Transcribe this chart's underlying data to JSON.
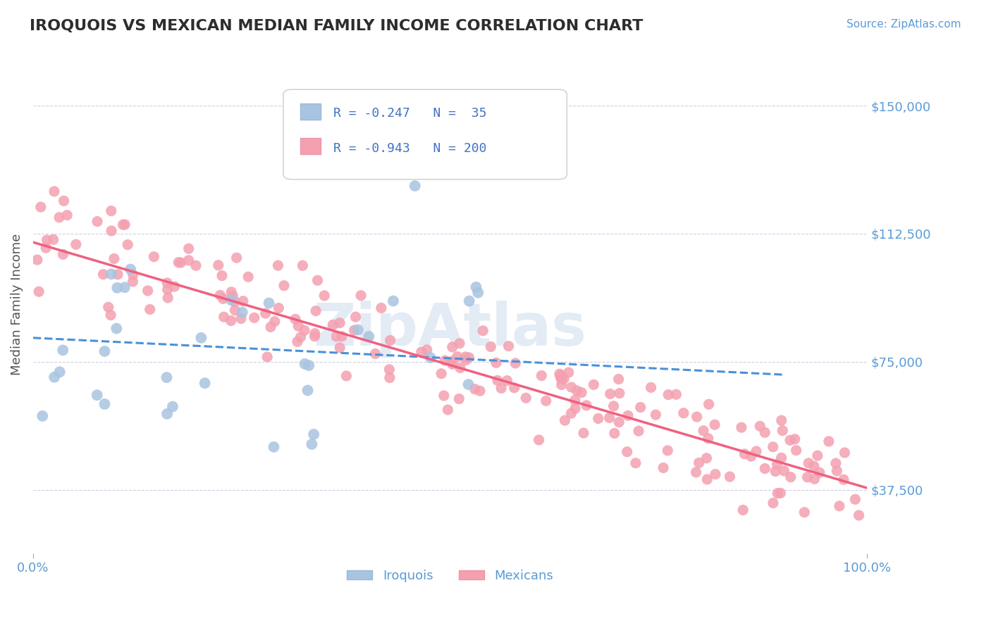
{
  "title": "IROQUOIS VS MEXICAN MEDIAN FAMILY INCOME CORRELATION CHART",
  "source_text": "Source: ZipAtlas.com",
  "ylabel": "Median Family Income",
  "watermark": "ZipAtlas",
  "xmin": 0.0,
  "xmax": 1.0,
  "ymin": 18750,
  "ymax": 165000,
  "yticks": [
    37500,
    75000,
    112500,
    150000
  ],
  "ytick_labels": [
    "$37,500",
    "$75,000",
    "$112,500",
    "$150,000"
  ],
  "xticks": [
    0.0,
    1.0
  ],
  "xtick_labels": [
    "0.0%",
    "100.0%"
  ],
  "legend_r_iroquois": "-0.247",
  "legend_n_iroquois": "35",
  "legend_r_mexicans": "-0.943",
  "legend_n_mexicans": "200",
  "iroquois_color": "#a8c4e0",
  "mexicans_color": "#f4a0b0",
  "iroquois_line_color": "#4a90d9",
  "mexicans_line_color": "#f06080",
  "axis_color": "#5b9bd5",
  "grid_color": "#d0d0e8",
  "legend_text_color": "#4472c4",
  "iroquois_intercept": 82000,
  "iroquois_slope": -12000,
  "mexicans_intercept": 110000,
  "mexicans_slope": -72000,
  "random_seed": 42
}
